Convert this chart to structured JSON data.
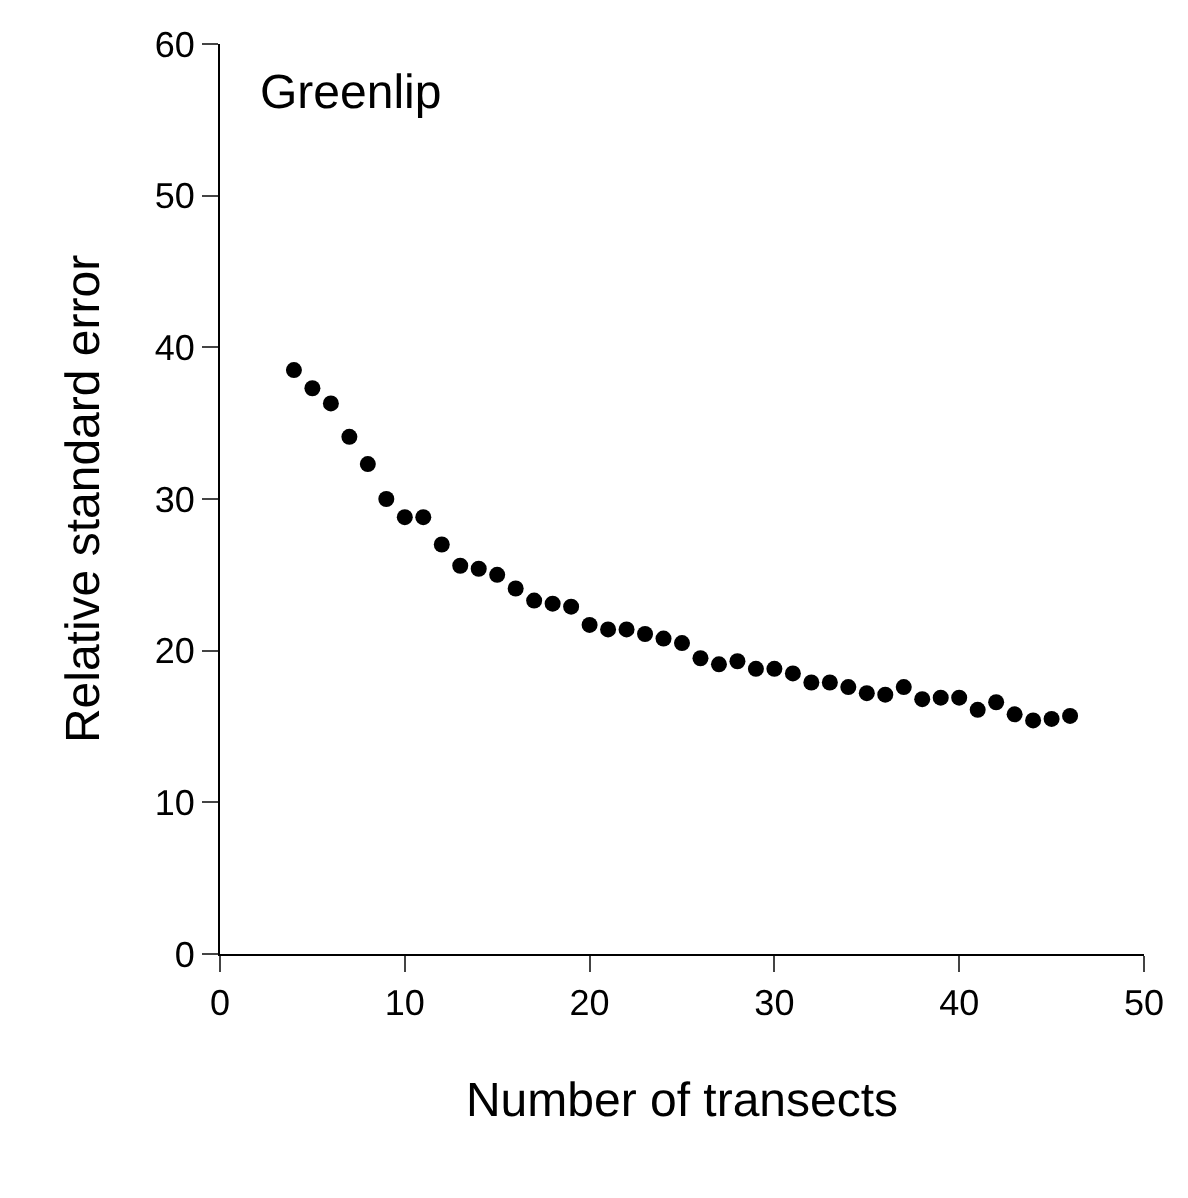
{
  "chart_data": {
    "type": "scatter",
    "xlabel": "Number of transects",
    "ylabel": "Relative standard error",
    "annotations": [
      "Greenlip"
    ],
    "x": [
      4,
      5,
      6,
      7,
      8,
      9,
      10,
      11,
      12,
      13,
      14,
      15,
      16,
      17,
      18,
      19,
      20,
      21,
      22,
      23,
      24,
      25,
      26,
      27,
      28,
      29,
      30,
      31,
      32,
      33,
      34,
      35,
      36,
      37,
      38,
      39,
      40,
      41,
      42,
      43,
      44,
      45,
      46
    ],
    "series": [
      {
        "color": "#000000",
        "values": [
          38.5,
          37.3,
          36.3,
          34.1,
          32.3,
          30.0,
          28.8,
          28.8,
          27.0,
          25.6,
          25.4,
          25.0,
          24.1,
          23.3,
          23.1,
          22.9,
          21.7,
          21.4,
          21.4,
          21.1,
          20.8,
          20.5,
          19.5,
          19.1,
          19.3,
          18.8,
          18.8,
          18.5,
          17.9,
          17.9,
          17.6,
          17.2,
          17.1,
          17.6,
          16.8,
          16.9,
          16.9,
          16.1,
          16.6,
          15.8,
          15.4,
          15.5,
          15.7
        ]
      }
    ],
    "xlim": [
      0,
      50
    ],
    "xticks": [
      0,
      10,
      20,
      30,
      40,
      50
    ],
    "ylim": [
      0,
      60
    ],
    "yticks": [
      0,
      10,
      20,
      30,
      40,
      50,
      60
    ],
    "grid": false,
    "marker": "circle"
  }
}
